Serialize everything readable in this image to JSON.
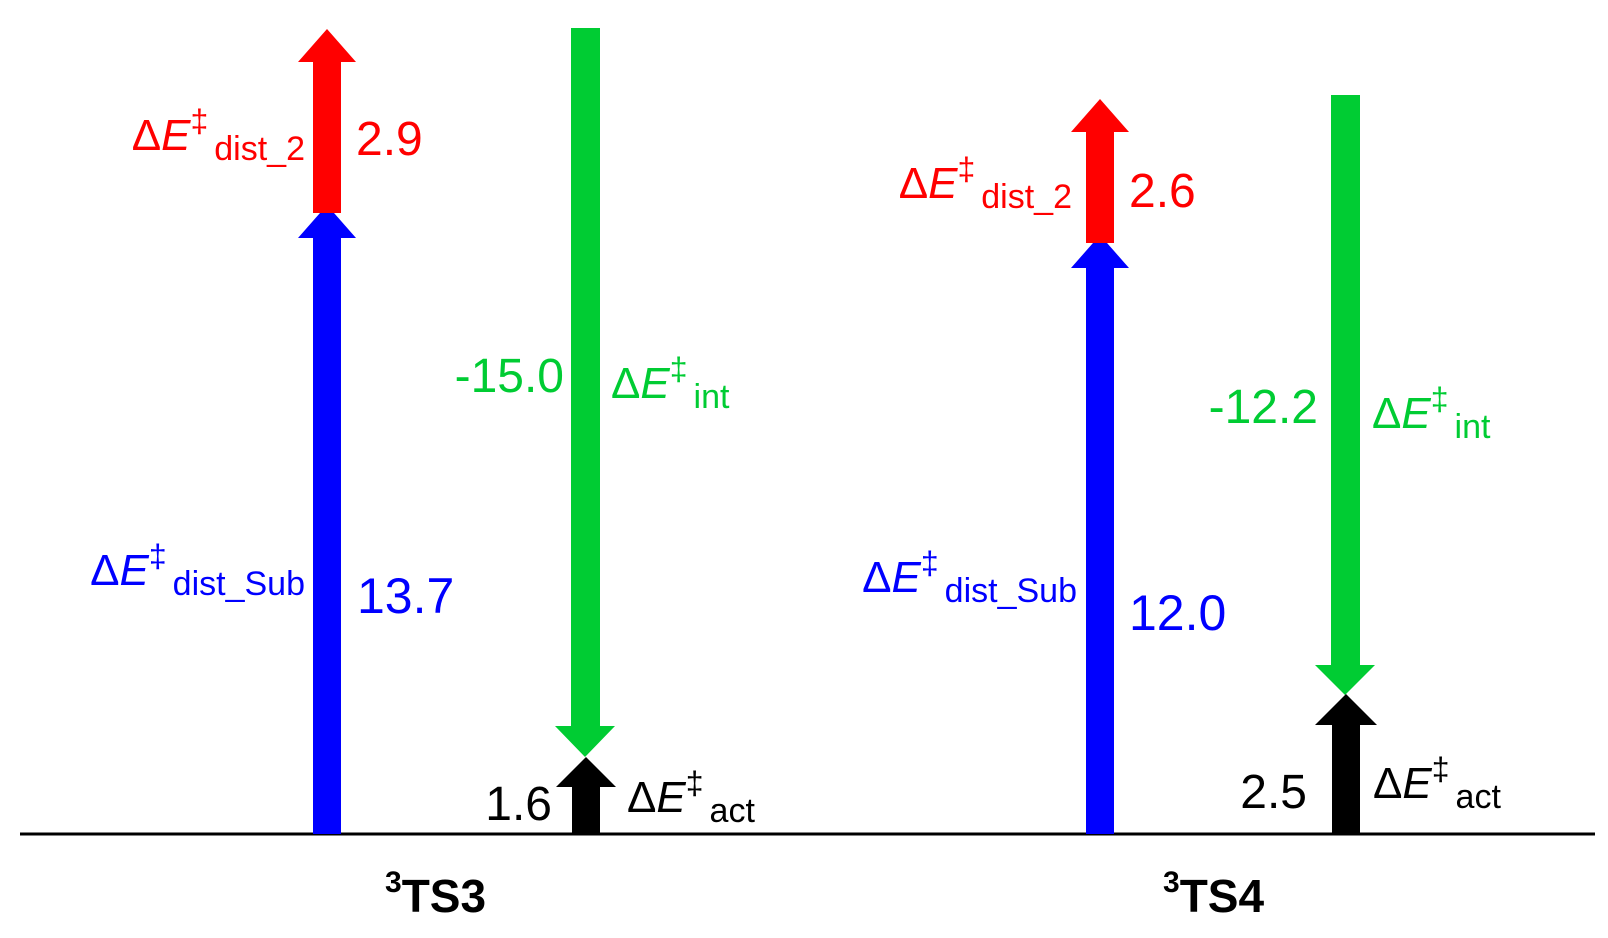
{
  "colors": {
    "dist_2": "#ff0000",
    "dist_sub": "#0000ff",
    "int": "#00cc33",
    "act": "#000000",
    "baseline": "#000000"
  },
  "symbols": {
    "delta": "Δ",
    "energy": "E",
    "dagger": "‡"
  },
  "subscripts": {
    "dist_2": "dist_2",
    "dist_sub": "dist_Sub",
    "int": "int",
    "act": "act"
  },
  "structures": [
    {
      "label_sup": "3",
      "label_main": "TS3",
      "dist_sub": "13.7",
      "dist_2": "2.9",
      "int": "-15.0",
      "act": "1.6"
    },
    {
      "label_sup": "3",
      "label_main": "TS4",
      "dist_sub": "12.0",
      "dist_2": "2.6",
      "int": "-12.2",
      "act": "2.5"
    }
  ]
}
